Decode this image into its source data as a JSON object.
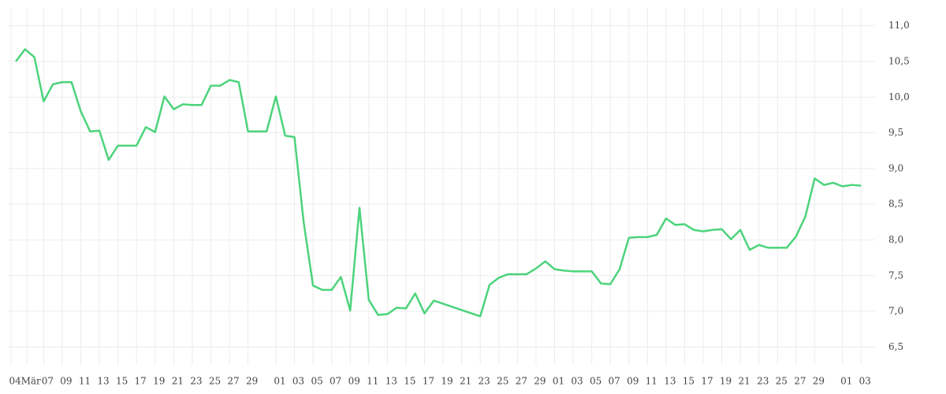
{
  "chart_data": {
    "type": "line",
    "x": [
      0,
      1,
      2,
      3,
      4,
      5,
      6,
      7,
      8,
      9,
      10,
      11,
      12,
      13,
      14,
      15,
      16,
      17,
      18,
      19,
      20,
      21,
      22,
      23,
      24,
      25,
      26,
      27,
      28,
      29,
      30,
      31,
      32,
      33,
      34,
      35,
      36,
      37,
      38,
      39,
      40,
      41,
      42,
      43,
      44,
      45,
      50,
      51,
      52,
      53,
      54,
      55,
      56,
      57,
      58,
      59,
      60,
      61,
      62,
      63,
      64,
      65,
      66,
      67,
      68,
      69,
      70,
      71,
      72,
      73,
      74,
      75,
      76,
      77,
      78,
      79,
      80,
      81,
      82,
      83,
      84,
      85,
      86,
      87,
      88,
      89,
      90,
      91
    ],
    "series": [
      {
        "color": "#4cd37b",
        "values": [
          10.5,
          10.67,
          10.56,
          9.94,
          10.18,
          10.21,
          10.21,
          9.8,
          9.52,
          9.53,
          9.12,
          9.32,
          9.32,
          9.32,
          9.58,
          9.51,
          10.01,
          9.83,
          9.9,
          9.89,
          9.89,
          10.16,
          10.16,
          10.24,
          10.21,
          9.52,
          9.52,
          9.52,
          10.01,
          9.46,
          9.44,
          8.24,
          7.36,
          7.3,
          7.3,
          7.48,
          7.01,
          8.45,
          7.16,
          6.95,
          6.96,
          7.05,
          7.04,
          7.25,
          6.97,
          7.15,
          6.93,
          7.37,
          7.47,
          7.52,
          7.52,
          7.52,
          7.6,
          7.7,
          7.59,
          7.57,
          7.56,
          7.56,
          7.56,
          7.39,
          7.38,
          7.59,
          8.03,
          8.04,
          8.04,
          8.07,
          8.3,
          8.21,
          8.22,
          8.14,
          8.12,
          8.14,
          8.15,
          8.01,
          8.14,
          7.86,
          7.93,
          7.89,
          7.89,
          7.89,
          8.05,
          8.33,
          8.86,
          8.77,
          8.8,
          8.75,
          8.77,
          8.76
        ]
      }
    ],
    "xlim": [
      -0.85,
      92.5
    ],
    "xticks": [
      {
        "value": -0.5,
        "label": "04"
      },
      {
        "value": 1.2,
        "label": "Mär"
      },
      {
        "value": 3,
        "label": "07"
      },
      {
        "value": 5,
        "label": "09"
      },
      {
        "value": 7,
        "label": "11"
      },
      {
        "value": 9,
        "label": "13"
      },
      {
        "value": 11,
        "label": "15"
      },
      {
        "value": 13,
        "label": "17"
      },
      {
        "value": 15,
        "label": "19"
      },
      {
        "value": 17,
        "label": "21"
      },
      {
        "value": 19,
        "label": "23"
      },
      {
        "value": 21,
        "label": "25"
      },
      {
        "value": 23,
        "label": "27"
      },
      {
        "value": 25,
        "label": "29"
      },
      {
        "value": 28,
        "label": "01"
      },
      {
        "value": 30,
        "label": "03"
      },
      {
        "value": 32,
        "label": "05"
      },
      {
        "value": 34,
        "label": "07"
      },
      {
        "value": 36,
        "label": "09"
      },
      {
        "value": 38,
        "label": "11"
      },
      {
        "value": 40,
        "label": "13"
      },
      {
        "value": 42,
        "label": "15"
      },
      {
        "value": 44,
        "label": "17"
      },
      {
        "value": 46,
        "label": "19"
      },
      {
        "value": 48,
        "label": "21"
      },
      {
        "value": 50,
        "label": "23"
      },
      {
        "value": 52,
        "label": "25"
      },
      {
        "value": 54,
        "label": "27"
      },
      {
        "value": 56,
        "label": "29"
      },
      {
        "value": 58,
        "label": "01"
      },
      {
        "value": 60,
        "label": "03"
      },
      {
        "value": 62,
        "label": "05"
      },
      {
        "value": 64,
        "label": "07"
      },
      {
        "value": 66,
        "label": "09"
      },
      {
        "value": 68,
        "label": "11"
      },
      {
        "value": 70,
        "label": "13"
      },
      {
        "value": 72,
        "label": "15"
      },
      {
        "value": 74,
        "label": "17"
      },
      {
        "value": 76,
        "label": "19"
      },
      {
        "value": 78,
        "label": "21"
      },
      {
        "value": 80,
        "label": "23"
      },
      {
        "value": 82,
        "label": "25"
      },
      {
        "value": 84,
        "label": "27"
      },
      {
        "value": 86,
        "label": "29"
      },
      {
        "value": 89,
        "label": "01"
      },
      {
        "value": 91,
        "label": "03"
      }
    ],
    "ylim": [
      6.25,
      11.25
    ],
    "yticks": [
      {
        "value": 6.5,
        "label": "6,5"
      },
      {
        "value": 7,
        "label": "7,0"
      },
      {
        "value": 7.5,
        "label": "7,5"
      },
      {
        "value": 8,
        "label": "8,0"
      },
      {
        "value": 8.5,
        "label": "8,5"
      },
      {
        "value": 9,
        "label": "9,0"
      },
      {
        "value": 9.5,
        "label": "9,5"
      },
      {
        "value": 10,
        "label": "10,0"
      },
      {
        "value": 10.5,
        "label": "10,5"
      },
      {
        "value": 11,
        "label": "11,0"
      }
    ],
    "grid": true
  }
}
